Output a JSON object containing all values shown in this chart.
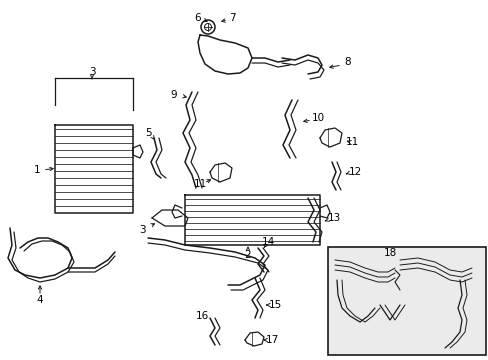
{
  "bg_color": "#ffffff",
  "line_color": "#1a1a1a",
  "lw": 1.1,
  "fig_width": 4.89,
  "fig_height": 3.6,
  "dpi": 100,
  "box_bg": "#ebebeb"
}
